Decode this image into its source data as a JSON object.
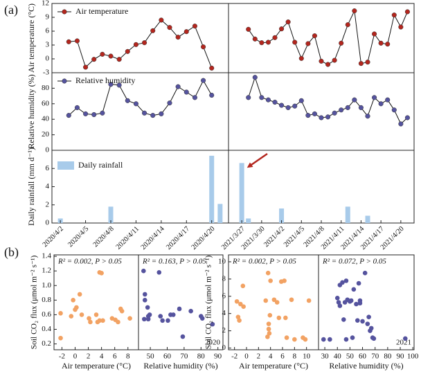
{
  "panel_labels": [
    "(a)",
    "(b)"
  ],
  "time_axes": [
    {
      "xlim": [
        "2020/4/1",
        "2020/4/22"
      ],
      "xticks": [
        "2020/4/2",
        "2020/4/5",
        "2020/4/8",
        "2020/4/11",
        "2020/4/14",
        "2020/4/17",
        "2020/4/20"
      ]
    },
    {
      "xlim": [
        "2021/3/25",
        "2021/4/22"
      ],
      "xticks": [
        "2021/3/27",
        "2021/3/30",
        "2021/4/2",
        "2021/4/5",
        "2021/4/8",
        "2021/4/11",
        "2021/4/14",
        "2021/4/17",
        "2021/4/20"
      ]
    }
  ],
  "chart_data": [
    {
      "type": "line",
      "ylabel": "Air temperature (°C)",
      "ylim": [
        -3,
        12
      ],
      "yticks": [
        -3,
        0,
        3,
        6,
        9,
        12
      ],
      "series": [
        {
          "name": "Air temperature",
          "color": "#b3261e",
          "x": [
            "2020/4/3",
            "2020/4/4",
            "2020/4/5",
            "2020/4/6",
            "2020/4/7",
            "2020/4/8",
            "2020/4/9",
            "2020/4/10",
            "2020/4/11",
            "2020/4/12",
            "2020/4/13",
            "2020/4/14",
            "2020/4/15",
            "2020/4/16",
            "2020/4/17",
            "2020/4/18",
            "2020/4/19",
            "2020/4/20"
          ],
          "values": [
            3.7,
            3.9,
            -1.8,
            -0.1,
            1.0,
            0.6,
            -0.1,
            1.6,
            3.1,
            3.5,
            6.1,
            8.4,
            6.8,
            4.7,
            5.9,
            7.1,
            2.6,
            -2.0
          ]
        },
        {
          "color": "#b3261e",
          "x": [
            "2021/3/28",
            "2021/3/29",
            "2021/3/30",
            "2021/3/31",
            "2021/4/1",
            "2021/4/2",
            "2021/4/3",
            "2021/4/4",
            "2021/4/5",
            "2021/4/6",
            "2021/4/7",
            "2021/4/8",
            "2021/4/9",
            "2021/4/10",
            "2021/4/11",
            "2021/4/12",
            "2021/4/13",
            "2021/4/14",
            "2021/4/15",
            "2021/4/16",
            "2021/4/17",
            "2021/4/18",
            "2021/4/19",
            "2021/4/20",
            "2021/4/21"
          ],
          "values": [
            6.4,
            4.3,
            3.5,
            3.6,
            4.6,
            6.5,
            8.0,
            3.6,
            0.1,
            3.3,
            5.0,
            -0.5,
            -1.2,
            -0.3,
            3.4,
            7.4,
            10.4,
            -1.0,
            -0.7,
            5.4,
            3.4,
            3.2,
            9.5,
            6.9,
            10.2
          ]
        }
      ]
    },
    {
      "type": "line",
      "ylabel": "Relative humidity (%)",
      "ylim": [
        0,
        100
      ],
      "yticks": [
        0,
        20,
        40,
        60,
        80
      ],
      "series": [
        {
          "name": "Relative humidity",
          "color": "#55539e",
          "x": [
            "2020/4/3",
            "2020/4/4",
            "2020/4/5",
            "2020/4/6",
            "2020/4/7",
            "2020/4/8",
            "2020/4/9",
            "2020/4/10",
            "2020/4/11",
            "2020/4/12",
            "2020/4/13",
            "2020/4/14",
            "2020/4/15",
            "2020/4/16",
            "2020/4/17",
            "2020/4/18",
            "2020/4/19",
            "2020/4/20"
          ],
          "values": [
            45,
            55,
            47,
            46,
            48,
            85,
            84,
            64,
            60,
            48,
            45,
            47,
            61,
            82,
            75,
            68,
            90,
            71
          ]
        },
        {
          "color": "#55539e",
          "x": [
            "2021/3/28",
            "2021/3/29",
            "2021/3/30",
            "2021/3/31",
            "2021/4/1",
            "2021/4/2",
            "2021/4/3",
            "2021/4/4",
            "2021/4/5",
            "2021/4/6",
            "2021/4/7",
            "2021/4/8",
            "2021/4/9",
            "2021/4/10",
            "2021/4/11",
            "2021/4/12",
            "2021/4/13",
            "2021/4/14",
            "2021/4/15",
            "2021/4/16",
            "2021/4/17",
            "2021/4/18",
            "2021/4/19",
            "2021/4/20",
            "2021/4/21"
          ],
          "values": [
            68,
            94,
            68,
            65,
            62,
            58,
            55,
            57,
            64,
            45,
            47,
            42,
            43,
            48,
            52,
            55,
            65,
            55,
            44,
            68,
            60,
            65,
            52,
            34,
            42
          ]
        }
      ]
    },
    {
      "type": "bar",
      "ylabel": "Daily rainfall (mm d⁻¹)",
      "ylim": [
        0,
        8
      ],
      "yticks": [
        0,
        2,
        4,
        6
      ],
      "series": [
        {
          "name": "Daily rainfall",
          "color": "#a8cbea",
          "x": [
            "2020/4/2",
            "2020/4/8",
            "2020/4/20",
            "2020/4/21"
          ],
          "values": [
            0.5,
            1.8,
            7.4,
            2.1
          ]
        },
        {
          "color": "#a8cbea",
          "x": [
            "2021/3/27",
            "2021/3/28",
            "2021/4/2",
            "2021/4/12",
            "2021/4/15"
          ],
          "values": [
            6.6,
            0.5,
            1.6,
            1.8,
            0.8
          ]
        }
      ]
    },
    {
      "type": "scatter",
      "xlabel": "Air temperature (°C)",
      "ylabel": "Soil  CO₂ flux (μmol m⁻² s⁻¹)",
      "annotation": "R² = 0.002, P > 0.05",
      "xlim": [
        -3.2,
        9.6
      ],
      "xticks": [
        -2,
        0,
        2,
        4,
        6,
        8
      ],
      "ylim": [
        0.12,
        1.42
      ],
      "yticks": [
        0.2,
        0.4,
        0.6,
        0.8,
        {
          "value": 1,
          "label": "1.0"
        },
        1.2,
        1.4
      ],
      "color": "#f2a263",
      "x": [
        -2.2,
        -2.2,
        -0.6,
        -0.3,
        0,
        0.2,
        0.7,
        1.0,
        2.1,
        2.3,
        3.2,
        3.4,
        3.7,
        3.7,
        4.0,
        4.2,
        5.6,
        6.1,
        6.5,
        6.9,
        7.1,
        8.3
      ],
      "values": [
        0.28,
        0.62,
        0.58,
        0.8,
        0.67,
        0.7,
        0.88,
        0.6,
        0.55,
        0.5,
        0.6,
        0.5,
        0.52,
        1.18,
        1.17,
        0.52,
        0.55,
        0.53,
        0.5,
        0.68,
        0.65,
        0.55
      ]
    },
    {
      "type": "scatter",
      "xlabel": "Relative humidity (%)",
      "annotation": "R² = 0.163, P > 0.05",
      "label": "2020",
      "xlim": [
        43,
        93
      ],
      "xticks": [
        50,
        60,
        70,
        80,
        90
      ],
      "ylim": [
        0.12,
        1.42
      ],
      "color": "#55539e",
      "x": [
        46,
        46.8,
        46.8,
        48.4,
        49.6,
        46.4,
        48.8,
        48.8,
        56,
        57.2,
        62,
        63.6,
        60.4,
        67.2,
        55.2,
        69.2,
        74,
        80,
        80.8,
        86.8
      ],
      "values": [
        1.2,
        0.88,
        0.8,
        0.7,
        0.6,
        0.54,
        0.54,
        0.58,
        0.58,
        0.52,
        0.6,
        0.6,
        0.52,
        0.68,
        1.18,
        0.3,
        0.65,
        0.58,
        0.55,
        0.47
      ]
    },
    {
      "type": "scatter",
      "xlabel": "Air temperature (°C)",
      "ylabel": "Soil  CO₂ flux (μmol m⁻² s⁻¹)",
      "annotation": "R² = 0.002, P > 0.05",
      "xlim": [
        -3,
        12
      ],
      "xticks": [
        -2,
        0,
        2,
        4,
        6,
        8,
        10
      ],
      "ylim": [
        -0.2,
        10.8
      ],
      "yticks": [
        0,
        2,
        4,
        6,
        8,
        10
      ],
      "color": "#f2a263",
      "x": [
        -1.6,
        -1.4,
        -1.2,
        -1,
        -0.6,
        -0.5,
        3.2,
        3.6,
        3.7,
        3.7,
        3.8,
        3.5,
        3.9,
        4.0,
        4.6,
        5.1,
        5.4,
        5.8,
        6.3,
        6.5,
        6.7,
        7.5,
        8.0,
        9.4,
        9.8,
        10.4
      ],
      "values": [
        5.4,
        3.6,
        3.2,
        5.1,
        7.2,
        4.8,
        5.5,
        8.7,
        2.8,
        2.2,
        1.7,
        1.3,
        3.8,
        7.8,
        5.6,
        5.3,
        3.5,
        7.7,
        7.8,
        3.5,
        1.2,
        5.6,
        1.0,
        1.2,
        1.0,
        5.5
      ]
    },
    {
      "type": "scatter",
      "xlabel": "Relative humidity (%)",
      "annotation": "R² = 0.072, P > 0.05",
      "label": "2021",
      "xlim": [
        25,
        101
      ],
      "xticks": [
        30,
        40,
        50,
        60,
        70,
        80,
        90,
        100
      ],
      "ylim": [
        -0.2,
        10.8
      ],
      "color": "#55539e",
      "x": [
        29,
        34,
        40,
        41,
        42,
        42,
        44,
        45,
        46,
        47,
        47,
        48,
        50,
        51,
        52,
        53,
        55,
        56,
        57,
        58,
        58,
        60,
        62,
        64,
        65,
        66,
        67,
        68,
        69,
        94
      ],
      "values": [
        1.0,
        1.0,
        5.8,
        5.3,
        7.3,
        4.9,
        7.6,
        3.3,
        5.3,
        1.0,
        7.8,
        5.6,
        5.4,
        5.5,
        1.2,
        6.8,
        5.1,
        3.2,
        7.5,
        5.5,
        5.2,
        3.1,
        8.7,
        2.8,
        3.6,
        2.0,
        2.3,
        1.2,
        1.1,
        1.1
      ]
    }
  ]
}
